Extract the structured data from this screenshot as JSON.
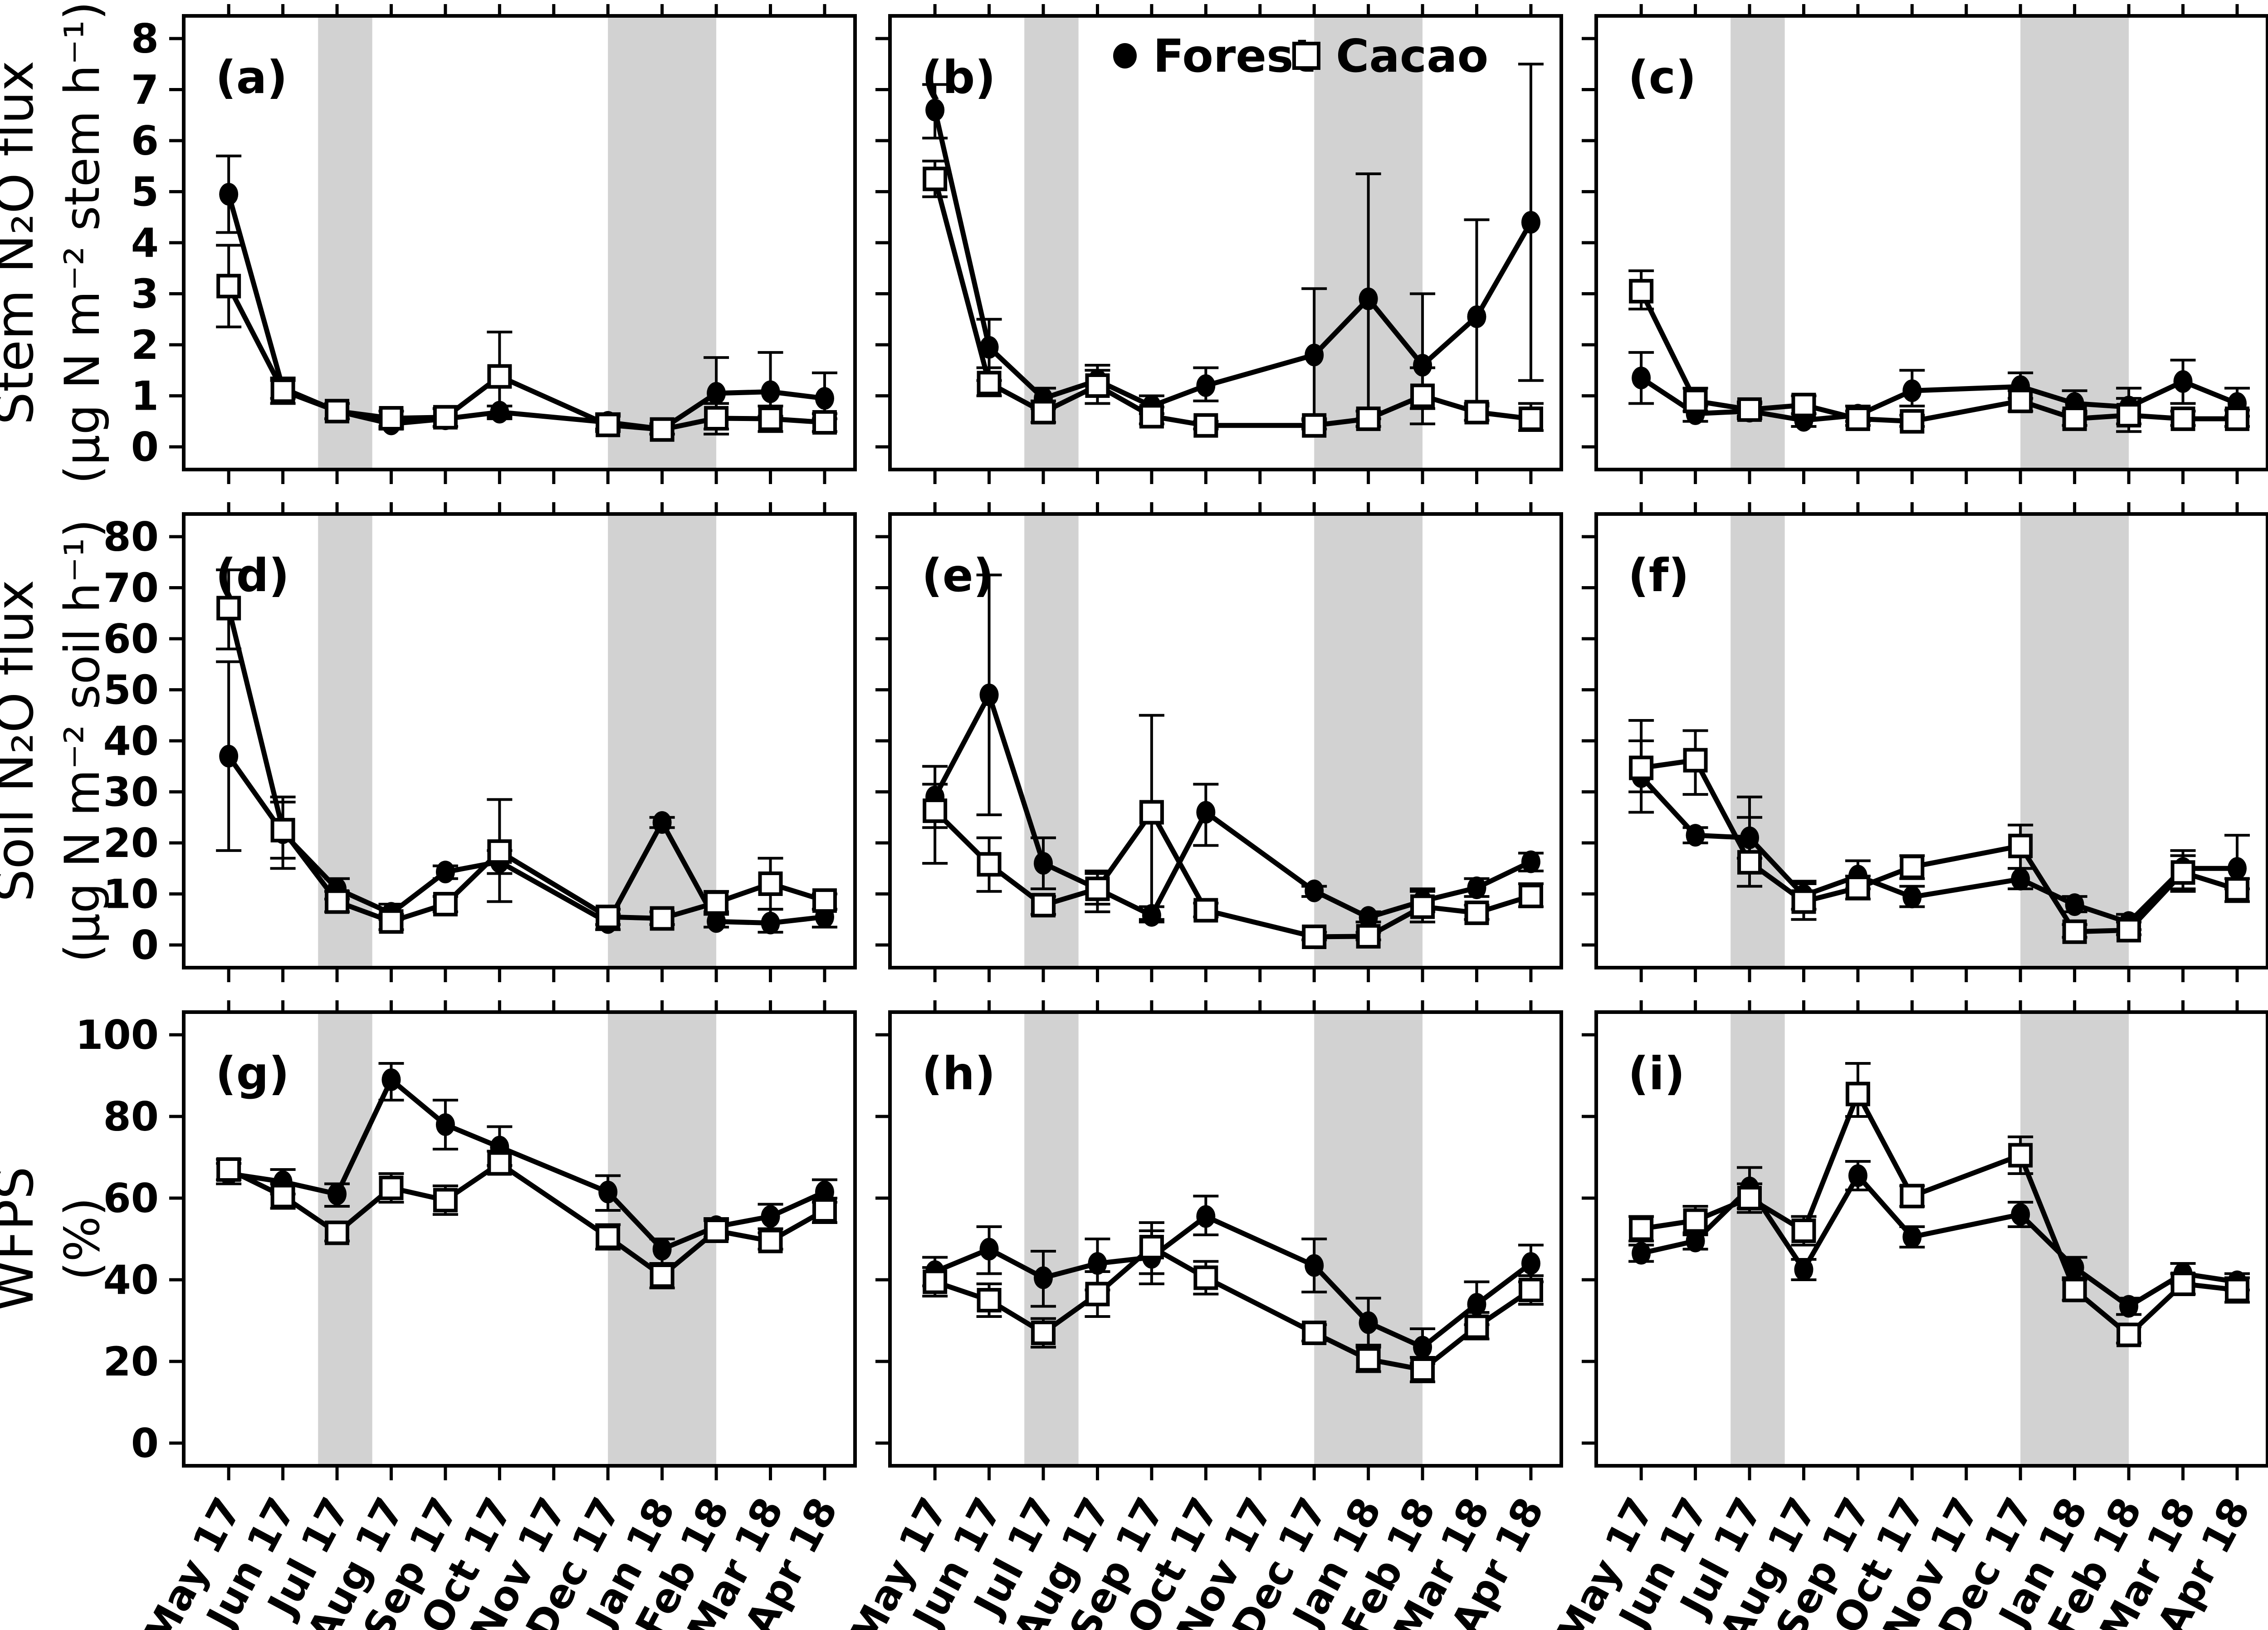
{
  "chart_data": {
    "type": "line",
    "layout": "3x3-panel-grid",
    "background": "#ffffff",
    "band_color": "#d2d2d2",
    "line_color": "#000000",
    "categories": [
      "May 17",
      "Jun 17",
      "Jul 17",
      "Aug 17",
      "Sep 17",
      "Oct 17",
      "Nov 17",
      "Dec 17",
      "Jan 18",
      "Feb 18",
      "Mar 18",
      "Apr 18"
    ],
    "shaded_bands_month_index": [
      [
        1.65,
        2.65
      ],
      [
        7.0,
        9.0
      ]
    ],
    "legend": {
      "position": "top-center-of-panel-b",
      "entries": [
        {
          "label": "Forest",
          "marker": "filled-circle"
        },
        {
          "label": "Cacao",
          "marker": "open-square"
        }
      ]
    },
    "rows": [
      {
        "name": "stem-n2o-flux",
        "ylabel_line1": "Stem N₂O flux",
        "ylabel_line2": "(μg N m⁻² stem h⁻¹)",
        "ylim": [
          0,
          8
        ],
        "yticks": [
          0,
          1,
          2,
          3,
          4,
          5,
          6,
          7,
          8
        ]
      },
      {
        "name": "soil-n2o-flux",
        "ylabel_line1": "Soil N₂O flux",
        "ylabel_line2": "(μg N m⁻² soil h⁻¹)",
        "ylim": [
          0,
          80
        ],
        "yticks": [
          0,
          10,
          20,
          30,
          40,
          50,
          60,
          70,
          80
        ]
      },
      {
        "name": "wfps",
        "ylabel_line1": "WFPS",
        "ylabel_line2": "(%)",
        "ylim": [
          0,
          100
        ],
        "yticks": [
          0,
          20,
          40,
          60,
          80,
          100
        ]
      }
    ],
    "panels": [
      {
        "letter": "(a)",
        "row": 0,
        "col": 0,
        "series": [
          {
            "name": "Forest",
            "values": [
              4.95,
              1.15,
              0.7,
              0.45,
              0.55,
              0.68,
              null,
              0.48,
              0.35,
              1.05,
              1.08,
              0.95
            ],
            "err_lo": [
              4.2,
              0.95,
              0.55,
              0.35,
              0.4,
              0.55,
              null,
              0.35,
              0.25,
              0.35,
              0.6,
              0.55
            ],
            "err_hi": [
              5.7,
              1.35,
              0.85,
              0.55,
              0.75,
              0.8,
              null,
              0.65,
              0.45,
              1.75,
              1.85,
              1.45
            ]
          },
          {
            "name": "Cacao",
            "values": [
              3.15,
              1.1,
              0.7,
              0.56,
              0.58,
              1.38,
              null,
              0.43,
              0.34,
              0.56,
              0.55,
              0.48
            ],
            "err_lo": [
              2.35,
              0.85,
              0.55,
              0.4,
              0.4,
              0.6,
              null,
              0.3,
              0.25,
              0.25,
              0.3,
              0.3
            ],
            "err_hi": [
              3.95,
              1.3,
              0.85,
              0.7,
              0.75,
              2.25,
              null,
              0.6,
              0.45,
              0.85,
              0.8,
              0.65
            ]
          }
        ]
      },
      {
        "letter": "(b)",
        "row": 0,
        "col": 1,
        "series": [
          {
            "name": "Forest",
            "values": [
              6.6,
              1.95,
              0.95,
              1.3,
              0.8,
              1.2,
              null,
              1.8,
              2.9,
              1.6,
              2.55,
              4.4
            ],
            "err_lo": [
              6.05,
              1.3,
              0.75,
              1.05,
              0.65,
              0.9,
              null,
              0.55,
              0.55,
              0.75,
              0.8,
              1.3
            ],
            "err_hi": [
              7.1,
              2.5,
              1.15,
              1.6,
              1.0,
              1.55,
              null,
              3.1,
              5.35,
              3.0,
              4.45,
              7.5
            ]
          },
          {
            "name": "Cacao",
            "values": [
              5.25,
              1.25,
              0.68,
              1.2,
              0.6,
              0.42,
              null,
              0.42,
              0.55,
              1.0,
              0.68,
              0.55
            ],
            "err_lo": [
              4.9,
              1.0,
              0.48,
              0.85,
              0.45,
              0.35,
              null,
              0.35,
              0.4,
              0.45,
              0.52,
              0.32
            ],
            "err_hi": [
              5.6,
              1.55,
              0.9,
              1.5,
              0.78,
              0.5,
              null,
              0.52,
              0.7,
              1.55,
              0.85,
              0.85
            ]
          }
        ]
      },
      {
        "letter": "(c)",
        "row": 0,
        "col": 2,
        "series": [
          {
            "name": "Forest",
            "values": [
              1.35,
              0.65,
              0.7,
              0.52,
              0.62,
              1.1,
              null,
              1.18,
              0.85,
              0.78,
              1.28,
              0.85
            ],
            "err_lo": [
              0.85,
              0.5,
              0.55,
              0.4,
              0.5,
              0.8,
              null,
              0.95,
              0.65,
              0.45,
              0.85,
              0.6
            ],
            "err_hi": [
              1.85,
              0.8,
              0.85,
              0.65,
              0.8,
              1.5,
              null,
              1.45,
              1.1,
              1.15,
              1.7,
              1.15
            ]
          },
          {
            "name": "Cacao",
            "values": [
              3.05,
              0.9,
              0.73,
              0.82,
              0.55,
              0.5,
              null,
              0.9,
              0.55,
              0.62,
              0.55,
              0.55
            ],
            "err_lo": [
              2.7,
              0.7,
              0.6,
              0.65,
              0.42,
              0.4,
              null,
              0.7,
              0.42,
              0.3,
              0.42,
              0.4
            ],
            "err_hi": [
              3.45,
              1.15,
              0.88,
              1.0,
              0.7,
              0.62,
              null,
              1.1,
              0.7,
              0.95,
              0.7,
              0.72
            ]
          }
        ]
      },
      {
        "letter": "(d)",
        "row": 1,
        "col": 0,
        "series": [
          {
            "name": "Forest",
            "values": [
              37,
              22,
              11,
              6.2,
              14.3,
              16.3,
              null,
              4.4,
              24,
              4.6,
              4.3,
              5.5
            ],
            "err_lo": [
              18.5,
              17,
              9,
              5,
              13,
              14,
              null,
              3,
              23,
              3.5,
              2.5,
              3.5
            ],
            "err_hi": [
              55.5,
              28,
              13,
              8,
              15.5,
              18.5,
              null,
              6,
              25,
              6,
              7,
              7
            ]
          },
          {
            "name": "Cacao",
            "values": [
              66,
              22.5,
              8.5,
              4.6,
              8,
              18.3,
              null,
              5.5,
              5.2,
              8.3,
              12,
              8.7
            ],
            "err_lo": [
              58,
              15,
              6.5,
              3,
              6.5,
              8.5,
              null,
              4,
              4,
              6.5,
              7,
              7
            ],
            "err_hi": [
              73.5,
              29,
              10.5,
              6,
              9.5,
              28.5,
              null,
              7,
              6.5,
              10.5,
              17,
              10
            ]
          }
        ]
      },
      {
        "letter": "(e)",
        "row": 1,
        "col": 1,
        "series": [
          {
            "name": "Forest",
            "values": [
              29,
              49,
              16,
              11,
              5.8,
              26,
              null,
              10.6,
              5.4,
              8.6,
              11.2,
              16.3
            ],
            "err_lo": [
              23,
              25.5,
              11,
              8,
              4.5,
              19.5,
              null,
              9.5,
              4.5,
              6.5,
              9.5,
              14.5
            ],
            "err_hi": [
              35,
              72.5,
              21,
              14,
              7.5,
              31.5,
              null,
              11.5,
              6.5,
              11,
              13,
              18
            ]
          },
          {
            "name": "Cacao",
            "values": [
              26.3,
              15.8,
              7.8,
              11,
              26,
              6.8,
              null,
              1.6,
              1.7,
              7.5,
              6.3,
              9.6
            ],
            "err_lo": [
              16,
              10.5,
              6,
              6.5,
              5,
              5.5,
              null,
              1,
              1,
              4.5,
              5,
              7.5
            ],
            "err_hi": [
              31.5,
              21,
              9.5,
              14.5,
              45,
              8.2,
              null,
              2.5,
              2.5,
              10.5,
              7.8,
              12
            ]
          }
        ]
      },
      {
        "letter": "(f)",
        "row": 1,
        "col": 2,
        "series": [
          {
            "name": "Forest",
            "values": [
              33,
              21.5,
              21,
              9.7,
              13.5,
              9.4,
              null,
              12.9,
              7.9,
              4.4,
              15,
              15
            ],
            "err_lo": [
              26,
              20,
              17,
              7,
              11,
              7.5,
              null,
              11,
              6.5,
              3,
              11,
              11
            ],
            "err_hi": [
              40,
              23,
              25,
              12.5,
              16.5,
              11.5,
              null,
              15,
              9.5,
              6,
              18.5,
              21.5
            ]
          },
          {
            "name": "Cacao",
            "values": [
              34.7,
              36.2,
              16.2,
              8.5,
              11.2,
              15.3,
              null,
              19.4,
              2.6,
              2.9,
              14.2,
              10.9
            ],
            "err_lo": [
              30,
              29.5,
              11.5,
              5,
              9,
              13,
              null,
              15,
              1.5,
              2,
              10.5,
              8.5
            ],
            "err_hi": [
              44,
              42,
              29,
              12,
              13.5,
              17.5,
              null,
              23.5,
              4,
              4.5,
              17.5,
              13
            ]
          }
        ]
      },
      {
        "letter": "(g)",
        "row": 2,
        "col": 0,
        "series": [
          {
            "name": "Forest",
            "values": [
              66,
              64,
              61,
              89,
              78,
              72.5,
              null,
              61.5,
              47.5,
              53,
              55.5,
              61.5
            ],
            "err_lo": [
              63.5,
              61,
              58,
              84,
              72,
              68,
              null,
              57,
              44,
              50.5,
              52.5,
              59
            ],
            "err_hi": [
              68.5,
              67,
              63.5,
              93,
              84,
              77.5,
              null,
              65.5,
              50,
              55,
              58.5,
              64.5
            ]
          },
          {
            "name": "Cacao",
            "values": [
              67,
              60.5,
              51.5,
              62.5,
              59.5,
              68.5,
              null,
              50.5,
              41,
              52,
              49.5,
              57
            ],
            "err_lo": [
              64.5,
              57.5,
              49.5,
              59,
              56,
              66,
              null,
              47.5,
              38,
              50,
              47.5,
              54
            ],
            "err_hi": [
              69.5,
              63.5,
              53.5,
              66,
              63,
              71.5,
              null,
              53.5,
              44,
              54.5,
              51.5,
              60
            ]
          }
        ]
      },
      {
        "letter": "(h)",
        "row": 2,
        "col": 1,
        "series": [
          {
            "name": "Forest",
            "values": [
              42,
              47.5,
              40.5,
              44,
              45.5,
              55.5,
              null,
              43.5,
              29.5,
              23.5,
              34,
              44
            ],
            "err_lo": [
              38.5,
              41.5,
              33.5,
              37.5,
              39,
              51,
              null,
              37,
              23.5,
              19.5,
              29,
              39.5
            ],
            "err_hi": [
              45.5,
              53,
              47,
              50,
              52,
              60.5,
              null,
              50,
              35.5,
              28,
              39.5,
              48.5
            ]
          },
          {
            "name": "Cacao",
            "values": [
              39.5,
              35,
              27,
              36.5,
              48,
              40.5,
              null,
              27,
              20.5,
              18,
              28.5,
              37.5
            ],
            "err_lo": [
              36,
              31,
              23.5,
              31,
              41.5,
              36.5,
              null,
              25,
              17.5,
              15,
              25.5,
              34
            ],
            "err_hi": [
              43,
              39,
              30.5,
              42,
              54,
              44.5,
              null,
              29,
              24,
              21,
              32,
              41
            ]
          }
        ]
      },
      {
        "letter": "(i)",
        "row": 2,
        "col": 2,
        "series": [
          {
            "name": "Forest",
            "values": [
              46.5,
              49.5,
              62.5,
              42.5,
              65.5,
              50.5,
              null,
              56,
              43,
              33.5,
              41.5,
              39.5
            ],
            "err_lo": [
              44.5,
              47.5,
              57.5,
              40,
              62,
              48,
              null,
              53,
              40.5,
              31.5,
              39,
              37.5
            ],
            "err_hi": [
              48.5,
              51.5,
              67.5,
              45,
              69,
              53,
              null,
              59,
              45.5,
              35.5,
              44,
              41.5
            ]
          },
          {
            "name": "Cacao",
            "values": [
              52.5,
              54.5,
              60,
              52,
              85.5,
              60.5,
              null,
              70.5,
              37.5,
              26.5,
              39,
              37.5
            ],
            "err_lo": [
              49.5,
              51,
              56.5,
              48.5,
              80,
              58,
              null,
              66,
              35,
              24.5,
              36.5,
              34.5
            ],
            "err_hi": [
              55.5,
              58,
              63.5,
              55.5,
              93,
              63,
              null,
              75,
              40,
              28.5,
              41.5,
              40.5
            ]
          }
        ]
      }
    ]
  }
}
